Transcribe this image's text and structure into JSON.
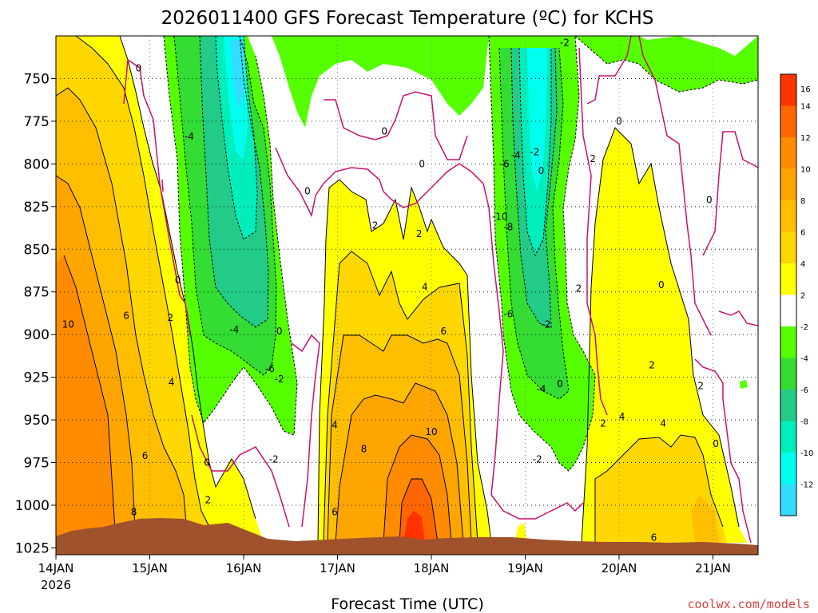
{
  "chart_data": {
    "type": "heatmap",
    "title": "2026011400 GFS Forecast Temperature (ºC) for KCHS",
    "xlabel": "Forecast Time (UTC)",
    "ylabel": "",
    "credit": "coolwx.com/models",
    "x_ticks": [
      "14JAN",
      "15JAN",
      "16JAN",
      "17JAN",
      "18JAN",
      "19JAN",
      "20JAN",
      "21JAN"
    ],
    "x_tick_sub": "2026",
    "x_range_days": [
      0,
      7.7
    ],
    "y_ticks": [
      750,
      775,
      800,
      825,
      850,
      875,
      900,
      925,
      950,
      975,
      1000,
      1025
    ],
    "y_range_hpa": [
      725,
      1029
    ],
    "colorbar": {
      "levels": [
        -12,
        -10,
        -8,
        -6,
        -4,
        -2,
        2,
        4,
        6,
        8,
        10,
        12,
        14,
        16
      ],
      "labels": [
        "16",
        "14",
        "12",
        "10",
        "8",
        "6",
        "4",
        "2",
        "-2",
        "-4",
        "-6",
        "-8",
        "-10",
        "-12"
      ],
      "colors": [
        "#ff3300",
        "#ff6600",
        "#ff8c00",
        "#ffa500",
        "#ffbf00",
        "#ffd700",
        "#ffff00",
        "#ffffff",
        "#55ff00",
        "#33dd33",
        "#22cc88",
        "#00eebb",
        "#00ffee",
        "#33ddff"
      ]
    },
    "contour_labels": [
      {
        "text": "10",
        "day": 0.13,
        "p": 894
      },
      {
        "text": "8",
        "day": 0.83,
        "p": 1004
      },
      {
        "text": "6",
        "day": 0.75,
        "p": 889
      },
      {
        "text": "6",
        "day": 0.95,
        "p": 971
      },
      {
        "text": "4",
        "day": 1.23,
        "p": 928
      },
      {
        "text": "2",
        "day": 1.22,
        "p": 890
      },
      {
        "text": "0",
        "day": 1.3,
        "p": 868
      },
      {
        "text": "0",
        "day": 0.88,
        "p": 744
      },
      {
        "text": "0",
        "day": 1.61,
        "p": 975
      },
      {
        "text": "2",
        "day": 1.62,
        "p": 997
      },
      {
        "text": "-4",
        "day": 1.42,
        "p": 784
      },
      {
        "text": "-4",
        "day": 1.9,
        "p": 897
      },
      {
        "text": "-6",
        "day": 2.28,
        "p": 920
      },
      {
        "text": "-2",
        "day": 2.38,
        "p": 926
      },
      {
        "text": "0",
        "day": 2.38,
        "p": 898
      },
      {
        "text": "-2",
        "day": 2.32,
        "p": 973
      },
      {
        "text": "0",
        "day": 2.68,
        "p": 816
      },
      {
        "text": "0",
        "day": 3.5,
        "p": 781
      },
      {
        "text": "0",
        "day": 3.9,
        "p": 800
      },
      {
        "text": "2",
        "day": 3.4,
        "p": 836
      },
      {
        "text": "2",
        "day": 3.87,
        "p": 841
      },
      {
        "text": "4",
        "day": 3.93,
        "p": 872
      },
      {
        "text": "4",
        "day": 2.97,
        "p": 953
      },
      {
        "text": "6",
        "day": 4.13,
        "p": 898
      },
      {
        "text": "8",
        "day": 3.28,
        "p": 967
      },
      {
        "text": "10",
        "day": 4.0,
        "p": 957
      },
      {
        "text": "6",
        "day": 2.97,
        "p": 1004
      },
      {
        "text": "-4",
        "day": 4.9,
        "p": 795
      },
      {
        "text": "-6",
        "day": 4.78,
        "p": 800
      },
      {
        "text": "-10",
        "day": 4.73,
        "p": 831
      },
      {
        "text": "-8",
        "day": 4.82,
        "p": 837
      },
      {
        "text": "-6",
        "day": 4.82,
        "p": 888
      },
      {
        "text": "-2",
        "day": 5.1,
        "p": 793
      },
      {
        "text": "0",
        "day": 5.17,
        "p": 804
      },
      {
        "text": "-2",
        "day": 5.22,
        "p": 894
      },
      {
        "text": "-4",
        "day": 5.17,
        "p": 932
      },
      {
        "text": "0",
        "day": 5.37,
        "p": 929
      },
      {
        "text": "-2",
        "day": 5.13,
        "p": 973
      },
      {
        "text": "2",
        "day": 5.57,
        "p": 873
      },
      {
        "text": "0",
        "day": 6.0,
        "p": 775
      },
      {
        "text": "2",
        "day": 5.72,
        "p": 797
      },
      {
        "text": "0",
        "day": 6.45,
        "p": 871
      },
      {
        "text": "2",
        "day": 6.35,
        "p": 918
      },
      {
        "text": "2",
        "day": 5.83,
        "p": 952
      },
      {
        "text": "4",
        "day": 6.03,
        "p": 948
      },
      {
        "text": "4",
        "day": 6.47,
        "p": 952
      },
      {
        "text": "2",
        "day": 6.87,
        "p": 930
      },
      {
        "text": "0",
        "day": 6.96,
        "p": 821
      },
      {
        "text": "0",
        "day": 7.03,
        "p": 964
      },
      {
        "text": "6",
        "day": 6.37,
        "p": 1019
      },
      {
        "text": "-2",
        "day": 5.42,
        "p": 729
      }
    ]
  }
}
